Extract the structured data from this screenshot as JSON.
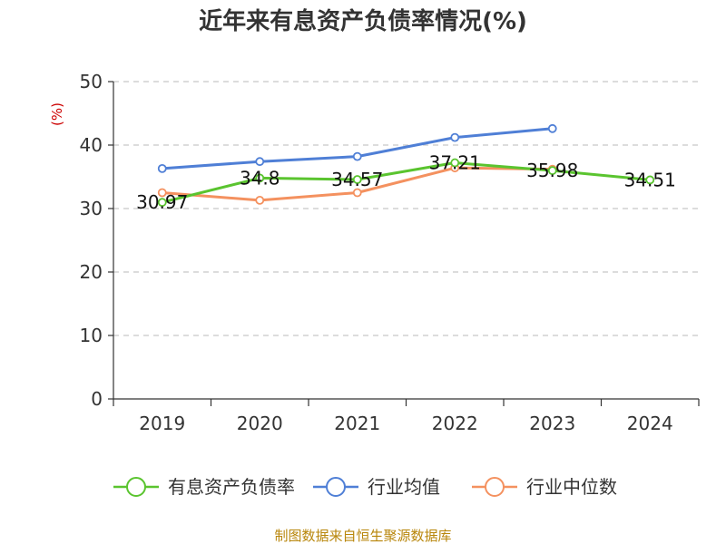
{
  "chart_data": {
    "type": "line",
    "title": "近年来有息资产负债率情况(%)",
    "ylabel": "(%)",
    "categories": [
      "2019",
      "2020",
      "2021",
      "2022",
      "2023",
      "2024"
    ],
    "ylim": [
      0,
      50
    ],
    "yticks": [
      0,
      10,
      20,
      30,
      40,
      50
    ],
    "grid": true,
    "legend_position": "bottom",
    "series": [
      {
        "name": "有息资产负债率",
        "color": "#5ac42f",
        "values": [
          30.97,
          34.8,
          34.57,
          37.21,
          35.98,
          34.51
        ],
        "labels": [
          "30.97",
          "34.8",
          "34.57",
          "37.21",
          "35.98",
          "34.51"
        ]
      },
      {
        "name": "行业均值",
        "color": "#4f7fd6",
        "values": [
          36.3,
          37.4,
          38.2,
          41.2,
          42.6,
          null
        ]
      },
      {
        "name": "行业中位数",
        "color": "#f4915f",
        "values": [
          32.5,
          31.3,
          32.5,
          36.4,
          36.2,
          null
        ]
      }
    ],
    "source": "制图数据来自恒生聚源数据库"
  }
}
